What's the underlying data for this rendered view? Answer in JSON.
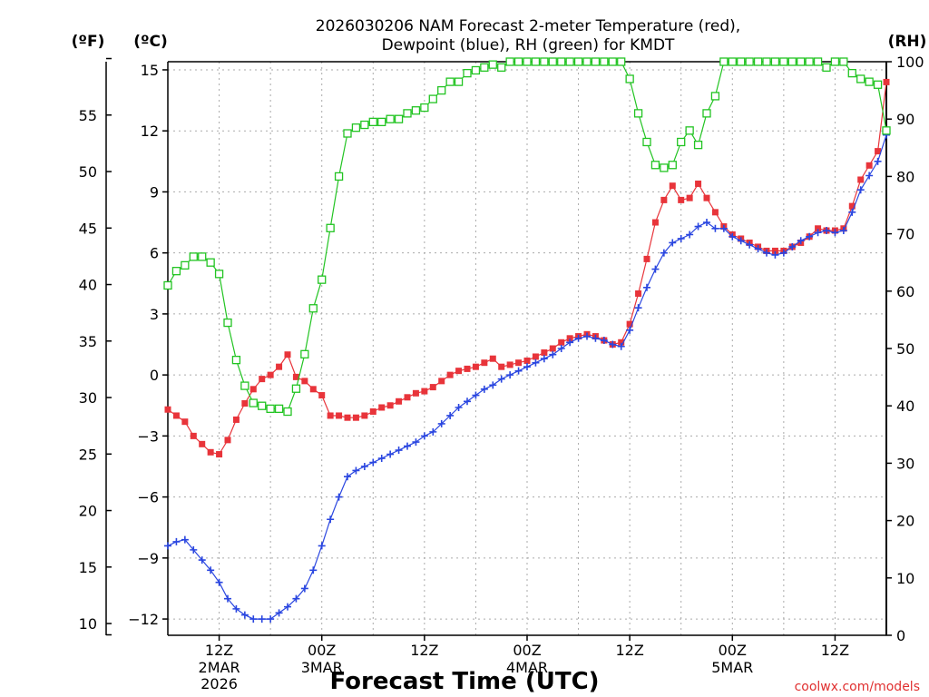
{
  "chart_data": {
    "type": "line",
    "title": "2026030206 NAM Forecast 2-meter Temperature (red),",
    "subtitle": "Dewpoint (blue), RH (green) for KMDT",
    "xlabel": "Forecast Time (UTC)",
    "credit": "coolwx.com/models",
    "axes": {
      "left_outer": {
        "label": "(ºF)",
        "ticks": [
          "55",
          "50",
          "45",
          "40",
          "35",
          "30",
          "25",
          "20",
          "15",
          "10"
        ],
        "tick_values": [
          55,
          50,
          45,
          40,
          35,
          30,
          25,
          20,
          15,
          10
        ]
      },
      "left_inner": {
        "label": "(ºC)",
        "ticks": [
          "15",
          "12",
          "9",
          "6",
          "3",
          "0",
          "−3",
          "−6",
          "−9",
          "−12"
        ],
        "tick_values": [
          15,
          12,
          9,
          6,
          3,
          0,
          -3,
          -6,
          -9,
          -12
        ],
        "ylim": [
          -12.8,
          15.4
        ]
      },
      "right": {
        "label": "(RH)",
        "ticks": [
          "100",
          "90",
          "80",
          "70",
          "60",
          "50",
          "40",
          "30",
          "20",
          "10",
          "0"
        ],
        "tick_values": [
          100,
          90,
          80,
          70,
          60,
          50,
          40,
          30,
          20,
          10,
          0
        ],
        "ylim": [
          0,
          100
        ]
      }
    },
    "x_hours": {
      "start": 0,
      "end": 84,
      "step": 1
    },
    "x_ticks": [
      {
        "hour": 6,
        "l1": "12Z",
        "l2": "2MAR",
        "l3": "2026"
      },
      {
        "hour": 18,
        "l1": "00Z",
        "l2": "3MAR",
        "l3": ""
      },
      {
        "hour": 30,
        "l1": "12Z",
        "l2": "",
        "l3": ""
      },
      {
        "hour": 42,
        "l1": "00Z",
        "l2": "4MAR",
        "l3": ""
      },
      {
        "hour": 54,
        "l1": "12Z",
        "l2": "",
        "l3": ""
      },
      {
        "hour": 66,
        "l1": "00Z",
        "l2": "5MAR",
        "l3": ""
      },
      {
        "hour": 78,
        "l1": "12Z",
        "l2": "",
        "l3": ""
      }
    ],
    "series": [
      {
        "name": "Temperature (°C)",
        "axis": "celsius",
        "color": "#e8343a",
        "marker": "square-filled",
        "values": [
          -1.7,
          -2.0,
          -2.3,
          -3.0,
          -3.4,
          -3.8,
          -3.9,
          -3.2,
          -2.2,
          -1.4,
          -0.7,
          -0.2,
          0.0,
          0.4,
          1.0,
          -0.1,
          -0.3,
          -0.7,
          -1.0,
          -2.0,
          -2.0,
          -2.1,
          -2.1,
          -2.0,
          -1.8,
          -1.6,
          -1.5,
          -1.3,
          -1.1,
          -0.9,
          -0.8,
          -0.6,
          -0.3,
          0.0,
          0.2,
          0.3,
          0.4,
          0.6,
          0.8,
          0.4,
          0.5,
          0.6,
          0.7,
          0.9,
          1.1,
          1.3,
          1.6,
          1.8,
          1.9,
          2.0,
          1.9,
          1.7,
          1.5,
          1.6,
          2.5,
          4.0,
          5.7,
          7.5,
          8.6,
          9.3,
          8.6,
          8.7,
          9.4,
          8.7,
          8.0,
          7.3,
          6.9,
          6.7,
          6.5,
          6.3,
          6.1,
          6.1,
          6.1,
          6.3,
          6.5,
          6.8,
          7.2,
          7.1,
          7.1,
          7.2,
          8.3,
          9.6,
          10.3,
          11.0,
          14.4
        ]
      },
      {
        "name": "Dewpoint (°C)",
        "axis": "celsius",
        "color": "#2a46e0",
        "marker": "plus",
        "values": [
          -8.4,
          -8.2,
          -8.1,
          -8.6,
          -9.1,
          -9.6,
          -10.2,
          -11.0,
          -11.5,
          -11.8,
          -12.0,
          -12.0,
          -12.0,
          -11.7,
          -11.4,
          -11.0,
          -10.5,
          -9.6,
          -8.4,
          -7.1,
          -6.0,
          -5.0,
          -4.7,
          -4.5,
          -4.3,
          -4.1,
          -3.9,
          -3.7,
          -3.5,
          -3.3,
          -3.0,
          -2.8,
          -2.4,
          -2.0,
          -1.6,
          -1.3,
          -1.0,
          -0.7,
          -0.5,
          -0.2,
          0.0,
          0.2,
          0.4,
          0.6,
          0.8,
          1.0,
          1.3,
          1.6,
          1.8,
          1.9,
          1.8,
          1.7,
          1.5,
          1.4,
          2.2,
          3.3,
          4.3,
          5.2,
          6.0,
          6.5,
          6.7,
          6.9,
          7.3,
          7.5,
          7.2,
          7.2,
          6.8,
          6.6,
          6.4,
          6.2,
          6.0,
          5.9,
          6.0,
          6.3,
          6.6,
          6.8,
          7.0,
          7.1,
          7.0,
          7.1,
          8.0,
          9.1,
          9.8,
          10.5,
          11.8
        ]
      },
      {
        "name": "RH (%)",
        "axis": "rh",
        "color": "#22c422",
        "marker": "square-open",
        "values": [
          61,
          63.5,
          64.5,
          66,
          66,
          65,
          63,
          54.5,
          48,
          43.5,
          40.5,
          40,
          39.5,
          39.5,
          39,
          43,
          49,
          57,
          62,
          71,
          80,
          87.5,
          88.5,
          89,
          89.5,
          89.5,
          90,
          90,
          91,
          91.5,
          92,
          93.5,
          95,
          96.5,
          96.5,
          98,
          98.5,
          99,
          99.5,
          99,
          100,
          100,
          100,
          100,
          100,
          100,
          100,
          100,
          100,
          100,
          100,
          100,
          100,
          100,
          97,
          91,
          86,
          82,
          81.5,
          82,
          86,
          88,
          85.5,
          91,
          94,
          100,
          100,
          100,
          100,
          100,
          100,
          100,
          100,
          100,
          100,
          100,
          100,
          99,
          100,
          100,
          98,
          97,
          96.5,
          96,
          88
        ]
      }
    ]
  }
}
